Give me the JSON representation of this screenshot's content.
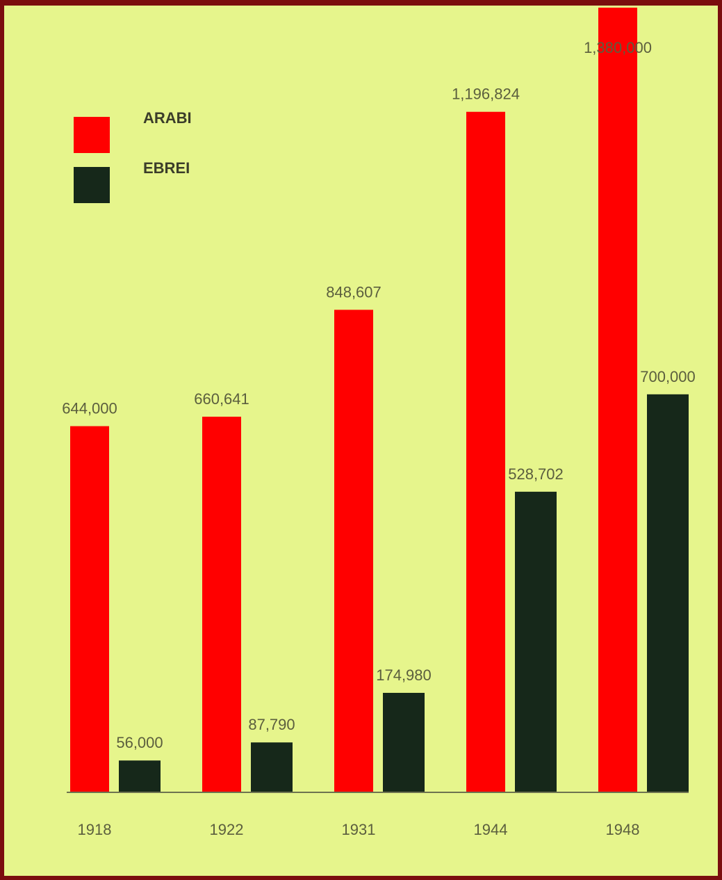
{
  "chart_data": {
    "type": "bar",
    "categories": [
      "1918",
      "1922",
      "1931",
      "1944",
      "1948"
    ],
    "series": [
      {
        "name": "ARABI",
        "color": "#ff0000",
        "values": [
          644000,
          660641,
          848607,
          1196824,
          1380000
        ],
        "labels": [
          "644,000",
          "660,641",
          "848,607",
          "1,196,824",
          "1,380,000"
        ]
      },
      {
        "name": "EBREI",
        "color": "#16281a",
        "values": [
          56000,
          87790,
          174980,
          528702,
          700000
        ],
        "labels": [
          "56,000",
          "87,790",
          "174,980",
          "528,702",
          "700,000"
        ]
      }
    ],
    "legend_position": "top-left",
    "grid": false,
    "title": "",
    "xlabel": "",
    "ylabel": ""
  }
}
